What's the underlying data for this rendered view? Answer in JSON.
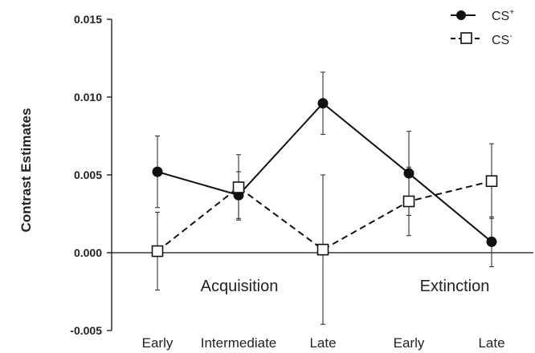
{
  "chart_data": {
    "type": "line",
    "ylabel": "Contrast Estimates",
    "ylim": [
      -0.005,
      0.015
    ],
    "yticks": [
      "-0.005",
      "0.000",
      "0.005",
      "0.010",
      "0.015"
    ],
    "ytick_values": [
      -0.005,
      0,
      0.005,
      0.01,
      0.015
    ],
    "categories": [
      "Early",
      "Intermediate",
      "Late",
      "Early",
      "Late"
    ],
    "phase_labels": [
      "Acquisition",
      "Extinction"
    ],
    "legend_position": "top-right",
    "grid": false,
    "series": [
      {
        "name": "CS",
        "name_superscript": "+",
        "marker": "filled-circle",
        "line_style": "solid",
        "color": "#111111",
        "values": [
          0.0052,
          0.0037,
          0.0096,
          0.0051,
          0.0007
        ],
        "errors": [
          0.0023,
          0.0015,
          0.002,
          0.0027,
          0.0016
        ]
      },
      {
        "name": "CS",
        "name_superscript": "-",
        "marker": "open-square",
        "line_style": "dashed",
        "color": "#111111",
        "values": [
          0.0001,
          0.0042,
          0.0002,
          0.0033,
          0.0046
        ],
        "errors": [
          0.0025,
          0.0021,
          0.0048,
          0.0022,
          0.0024
        ]
      }
    ]
  }
}
